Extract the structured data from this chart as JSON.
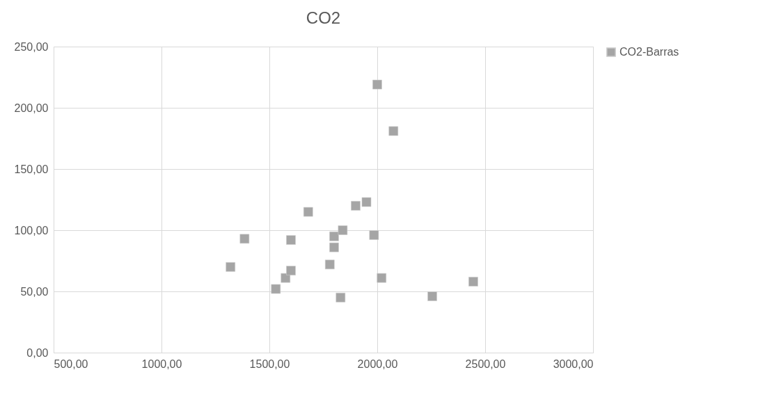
{
  "chart_data": {
    "type": "scatter",
    "title": "CO2",
    "x": [
      1320,
      1385,
      1530,
      1575,
      1600,
      1600,
      1680,
      1780,
      1800,
      1800,
      1830,
      1840,
      1900,
      1950,
      1985,
      2000,
      2020,
      2075,
      2255,
      2445
    ],
    "series": [
      {
        "name": "CO2-Barras",
        "color": "#a5a5a5",
        "values": [
          70,
          93,
          52,
          61,
          67,
          92,
          115,
          72,
          86,
          95,
          45,
          100,
          120,
          123,
          96,
          219,
          61,
          181,
          46,
          58
        ]
      }
    ],
    "xlim": [
      500,
      3000
    ],
    "xticks": [
      {
        "value": 500,
        "label": "500,00"
      },
      {
        "value": 1000,
        "label": "1000,00"
      },
      {
        "value": 1500,
        "label": "1500,00"
      },
      {
        "value": 2000,
        "label": "2000,00"
      },
      {
        "value": 2500,
        "label": "2500,00"
      },
      {
        "value": 3000,
        "label": "3000,00"
      }
    ],
    "ylim": [
      0,
      250
    ],
    "yticks": [
      {
        "value": 0,
        "label": "0,00"
      },
      {
        "value": 50,
        "label": "50,00"
      },
      {
        "value": 100,
        "label": "100,00"
      },
      {
        "value": 150,
        "label": "150,00"
      },
      {
        "value": 200,
        "label": "200,00"
      },
      {
        "value": 250,
        "label": "250,00"
      }
    ],
    "grid": true,
    "legend": "right",
    "marker": "square"
  }
}
